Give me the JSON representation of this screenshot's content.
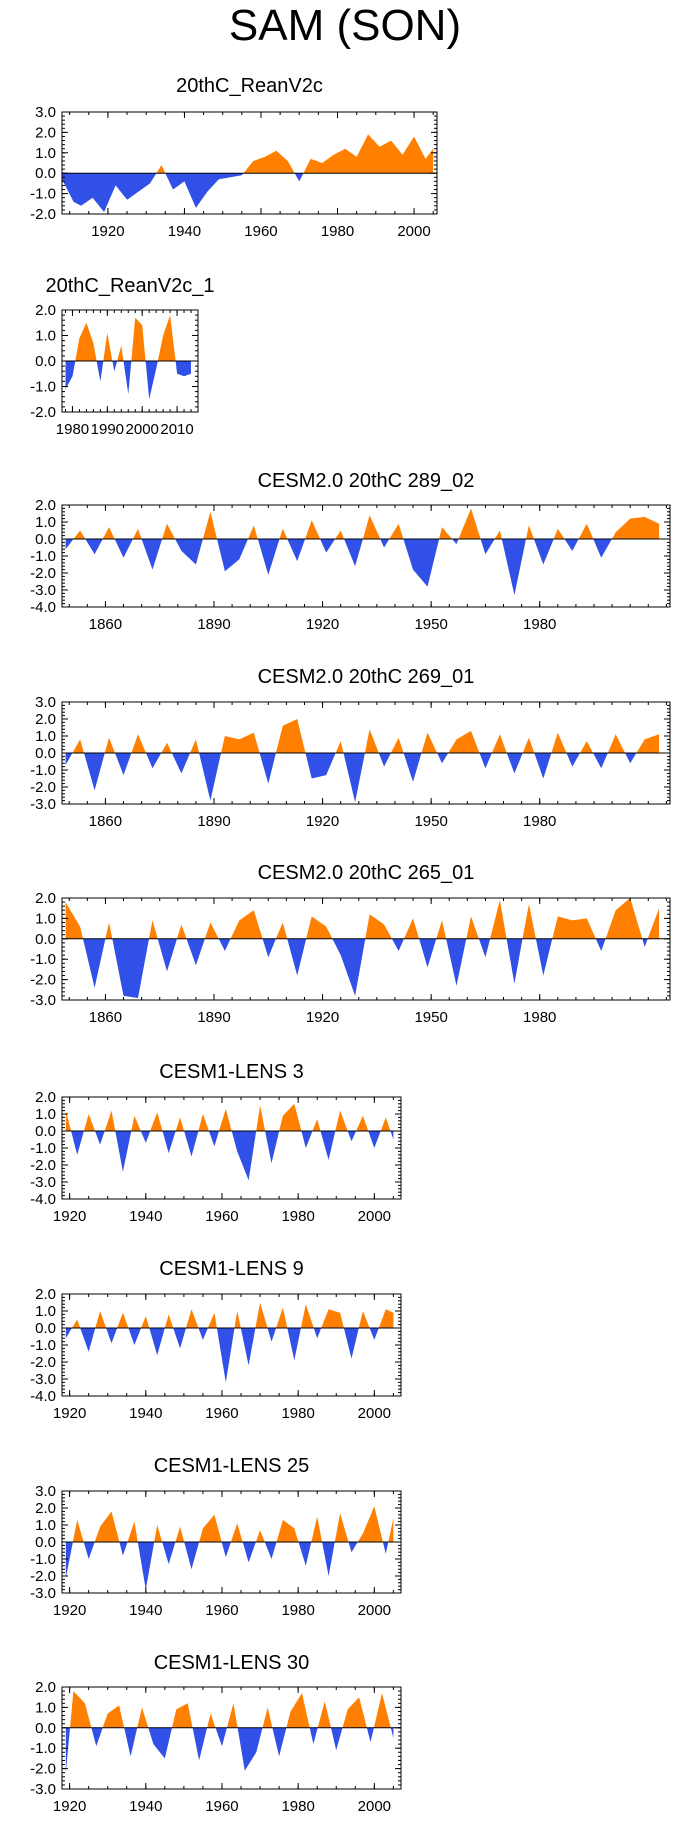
{
  "figure_title": "SAM (SON)",
  "colors": {
    "positive": "#ff8000",
    "negative": "#3050e8",
    "axis": "#000000"
  },
  "chart_data": [
    {
      "type": "area",
      "title": "20thC_ReanV2c",
      "xlim": [
        1908,
        2006
      ],
      "ylim": [
        -2.0,
        3.0
      ],
      "yticks": [
        "3.0",
        "2.0",
        "1.0",
        "0.0",
        "-1.0",
        "-2.0"
      ],
      "xticks": [
        "1920",
        "1940",
        "1960",
        "1980",
        "2000"
      ],
      "x": [
        1908,
        1911,
        1913,
        1916,
        1919,
        1922,
        1925,
        1928,
        1931,
        1934,
        1937,
        1940,
        1943,
        1946,
        1949,
        1952,
        1955,
        1958,
        1961,
        1964,
        1967,
        1970,
        1973,
        1976,
        1979,
        1982,
        1985,
        1988,
        1991,
        1994,
        1997,
        2000,
        2003,
        2005
      ],
      "values": [
        -0.3,
        -1.4,
        -1.6,
        -1.2,
        -1.9,
        -0.6,
        -1.3,
        -0.9,
        -0.5,
        0.4,
        -0.8,
        -0.4,
        -1.7,
        -0.9,
        -0.3,
        -0.2,
        -0.1,
        0.6,
        0.8,
        1.1,
        0.6,
        -0.4,
        0.7,
        0.5,
        0.9,
        1.2,
        0.8,
        1.9,
        1.3,
        1.6,
        0.9,
        1.8,
        0.7,
        1.2
      ]
    },
    {
      "type": "area",
      "title": "20thC_ReanV2c_1",
      "xlim": [
        1977,
        2016
      ],
      "ylim": [
        -2.0,
        2.0
      ],
      "yticks": [
        "2.0",
        "1.0",
        "0.0",
        "-1.0",
        "-2.0"
      ],
      "xticks": [
        "1980",
        "1990",
        "2000",
        "2010"
      ],
      "x": [
        1978,
        1980,
        1982,
        1984,
        1986,
        1988,
        1990,
        1992,
        1994,
        1996,
        1998,
        2000,
        2002,
        2004,
        2006,
        2008,
        2010,
        2012,
        2014
      ],
      "values": [
        -1.1,
        -0.6,
        0.9,
        1.5,
        0.7,
        -0.8,
        1.1,
        -0.4,
        0.6,
        -1.3,
        1.7,
        1.4,
        -1.5,
        -0.3,
        1.0,
        1.8,
        -0.5,
        -0.6,
        -0.5
      ]
    },
    {
      "type": "area",
      "title": "CESM2.0 20thC 289_02",
      "xlim": [
        1848,
        2016
      ],
      "ylim": [
        -4.0,
        2.0
      ],
      "yticks": [
        "2.0",
        "1.0",
        "0.0",
        "-1.0",
        "-2.0",
        "-3.0",
        "-4.0"
      ],
      "xticks": [
        "1860",
        "1890",
        "1920",
        "1950",
        "1980"
      ],
      "x": [
        1849,
        1853,
        1857,
        1861,
        1865,
        1869,
        1873,
        1877,
        1881,
        1885,
        1889,
        1893,
        1897,
        1901,
        1905,
        1909,
        1913,
        1917,
        1921,
        1925,
        1929,
        1933,
        1937,
        1941,
        1945,
        1949,
        1953,
        1957,
        1961,
        1965,
        1969,
        1973,
        1977,
        1981,
        1985,
        1989,
        1993,
        1997,
        2001,
        2005,
        2009,
        2013
      ],
      "values": [
        -0.6,
        0.5,
        -0.9,
        0.7,
        -1.1,
        0.6,
        -1.8,
        0.9,
        -0.7,
        -1.5,
        1.6,
        -1.9,
        -1.2,
        0.8,
        -2.1,
        0.6,
        -1.3,
        1.1,
        -0.8,
        0.5,
        -1.6,
        1.4,
        -0.5,
        0.9,
        -1.8,
        -2.8,
        0.7,
        -0.3,
        1.8,
        -0.9,
        0.5,
        -3.3,
        0.8,
        -1.5,
        0.6,
        -0.7,
        0.9,
        -1.1,
        0.4,
        1.2,
        1.3,
        0.9
      ]
    },
    {
      "type": "area",
      "title": "CESM2.0 20thC 269_01",
      "xlim": [
        1848,
        2016
      ],
      "ylim": [
        -3.0,
        3.0
      ],
      "yticks": [
        "3.0",
        "2.0",
        "1.0",
        "0.0",
        "-1.0",
        "-2.0",
        "-3.0"
      ],
      "xticks": [
        "1860",
        "1890",
        "1920",
        "1950",
        "1980"
      ],
      "x": [
        1849,
        1853,
        1857,
        1861,
        1865,
        1869,
        1873,
        1877,
        1881,
        1885,
        1889,
        1893,
        1897,
        1901,
        1905,
        1909,
        1913,
        1917,
        1921,
        1925,
        1929,
        1933,
        1937,
        1941,
        1945,
        1949,
        1953,
        1957,
        1961,
        1965,
        1969,
        1973,
        1977,
        1981,
        1985,
        1989,
        1993,
        1997,
        2001,
        2005,
        2009,
        2013
      ],
      "values": [
        -0.7,
        0.8,
        -2.2,
        0.9,
        -1.3,
        1.1,
        -0.9,
        0.6,
        -1.2,
        0.8,
        -2.8,
        1.0,
        0.8,
        1.2,
        -1.8,
        1.6,
        2.0,
        -1.5,
        -1.3,
        0.7,
        -2.9,
        1.4,
        -0.8,
        0.9,
        -1.7,
        1.2,
        -0.6,
        0.8,
        1.3,
        -0.9,
        1.1,
        -1.2,
        0.9,
        -1.5,
        1.2,
        -0.8,
        0.7,
        -0.9,
        1.1,
        -0.6,
        0.8,
        1.1
      ]
    },
    {
      "type": "area",
      "title": "CESM2.0 20thC 265_01",
      "xlim": [
        1848,
        2016
      ],
      "ylim": [
        -3.0,
        2.0
      ],
      "yticks": [
        "2.0",
        "1.0",
        "0.0",
        "-1.0",
        "-2.0",
        "-3.0"
      ],
      "xticks": [
        "1860",
        "1890",
        "1920",
        "1950",
        "1980"
      ],
      "x": [
        1849,
        1853,
        1857,
        1861,
        1865,
        1869,
        1873,
        1877,
        1881,
        1885,
        1889,
        1893,
        1897,
        1901,
        1905,
        1909,
        1913,
        1917,
        1921,
        1925,
        1929,
        1933,
        1937,
        1941,
        1945,
        1949,
        1953,
        1957,
        1961,
        1965,
        1969,
        1973,
        1977,
        1981,
        1985,
        1989,
        1993,
        1997,
        2001,
        2005,
        2009,
        2013
      ],
      "values": [
        1.8,
        0.6,
        -2.4,
        0.8,
        -2.8,
        -2.9,
        0.9,
        -1.6,
        0.7,
        -1.3,
        0.8,
        -0.6,
        0.9,
        1.4,
        -0.9,
        0.8,
        -1.8,
        1.1,
        0.6,
        -0.8,
        -2.8,
        1.2,
        0.7,
        -0.6,
        1.0,
        -1.4,
        0.9,
        -2.3,
        1.1,
        -0.9,
        1.9,
        -2.2,
        1.7,
        -1.8,
        1.1,
        0.9,
        1.0,
        -0.6,
        1.4,
        2.0,
        -0.4,
        1.5
      ]
    },
    {
      "type": "area",
      "title": "CESM1-LENS 3",
      "xlim": [
        1918,
        2007
      ],
      "ylim": [
        -4.0,
        2.0
      ],
      "yticks": [
        "2.0",
        "1.0",
        "0.0",
        "-1.0",
        "-2.0",
        "-3.0",
        "-4.0"
      ],
      "xticks": [
        "1920",
        "1940",
        "1960",
        "1980",
        "2000"
      ],
      "x": [
        1919,
        1922,
        1925,
        1928,
        1931,
        1934,
        1937,
        1940,
        1943,
        1946,
        1949,
        1952,
        1955,
        1958,
        1961,
        1964,
        1967,
        1970,
        1973,
        1976,
        1979,
        1982,
        1985,
        1988,
        1991,
        1994,
        1997,
        2000,
        2003,
        2005
      ],
      "values": [
        1.2,
        -1.4,
        1.0,
        -0.8,
        1.2,
        -2.4,
        0.9,
        -0.7,
        1.1,
        -1.3,
        0.8,
        -1.5,
        1.0,
        -0.9,
        1.3,
        -1.2,
        -2.9,
        1.5,
        -1.9,
        0.9,
        1.6,
        -1.0,
        0.7,
        -1.7,
        1.2,
        -0.6,
        0.9,
        -1.0,
        0.8,
        -0.5
      ]
    },
    {
      "type": "area",
      "title": "CESM1-LENS 9",
      "xlim": [
        1918,
        2007
      ],
      "ylim": [
        -4.0,
        2.0
      ],
      "yticks": [
        "2.0",
        "1.0",
        "0.0",
        "-1.0",
        "-2.0",
        "-3.0",
        "-4.0"
      ],
      "xticks": [
        "1920",
        "1940",
        "1960",
        "1980",
        "2000"
      ],
      "x": [
        1919,
        1922,
        1925,
        1928,
        1931,
        1934,
        1937,
        1940,
        1943,
        1946,
        1949,
        1952,
        1955,
        1958,
        1961,
        1964,
        1967,
        1970,
        1973,
        1976,
        1979,
        1982,
        1985,
        1988,
        1991,
        1994,
        1997,
        2000,
        2003,
        2005
      ],
      "values": [
        -0.6,
        0.5,
        -1.4,
        1.0,
        -0.9,
        0.9,
        -1.0,
        0.7,
        -1.6,
        0.8,
        -1.2,
        1.1,
        -0.7,
        0.9,
        -3.2,
        1.0,
        -2.2,
        1.5,
        -0.8,
        1.2,
        -1.9,
        1.4,
        -0.6,
        1.1,
        0.9,
        -1.8,
        1.0,
        -0.7,
        1.1,
        0.9
      ]
    },
    {
      "type": "area",
      "title": "CESM1-LENS 25",
      "xlim": [
        1918,
        2007
      ],
      "ylim": [
        -3.0,
        3.0
      ],
      "yticks": [
        "3.0",
        "2.0",
        "1.0",
        "0.0",
        "-1.0",
        "-2.0",
        "-3.0"
      ],
      "xticks": [
        "1920",
        "1940",
        "1960",
        "1980",
        "2000"
      ],
      "x": [
        1919,
        1922,
        1925,
        1928,
        1931,
        1934,
        1937,
        1940,
        1943,
        1946,
        1949,
        1952,
        1955,
        1958,
        1961,
        1964,
        1967,
        1970,
        1973,
        1976,
        1979,
        1982,
        1985,
        1988,
        1991,
        1994,
        1997,
        2000,
        2003,
        2005
      ],
      "values": [
        -2.1,
        1.3,
        -1.0,
        0.9,
        1.8,
        -0.8,
        1.2,
        -2.8,
        1.0,
        -1.3,
        0.9,
        -1.6,
        0.8,
        1.6,
        -0.9,
        1.1,
        -1.2,
        0.7,
        -1.0,
        1.3,
        0.8,
        -1.4,
        1.5,
        -2.0,
        1.7,
        -0.6,
        0.5,
        2.1,
        -0.7,
        1.4
      ]
    },
    {
      "type": "area",
      "title": "CESM1-LENS 30",
      "xlim": [
        1918,
        2007
      ],
      "ylim": [
        -3.0,
        2.0
      ],
      "yticks": [
        "2.0",
        "1.0",
        "0.0",
        "-1.0",
        "-2.0",
        "-3.0"
      ],
      "xticks": [
        "1920",
        "1940",
        "1960",
        "1980",
        "2000"
      ],
      "x": [
        1919,
        1921,
        1924,
        1927,
        1930,
        1933,
        1936,
        1939,
        1942,
        1945,
        1948,
        1951,
        1954,
        1957,
        1960,
        1963,
        1966,
        1969,
        1972,
        1975,
        1978,
        1981,
        1984,
        1987,
        1990,
        1993,
        1996,
        1999,
        2002,
        2005
      ],
      "values": [
        -2.2,
        1.8,
        1.2,
        -0.9,
        0.7,
        1.1,
        -1.4,
        1.0,
        -0.8,
        -1.5,
        0.9,
        1.2,
        -1.6,
        0.7,
        -0.9,
        1.2,
        -2.1,
        -1.2,
        1.0,
        -1.4,
        0.8,
        1.7,
        -0.8,
        1.3,
        -1.1,
        0.9,
        1.5,
        -0.7,
        1.7,
        -0.5
      ]
    }
  ]
}
